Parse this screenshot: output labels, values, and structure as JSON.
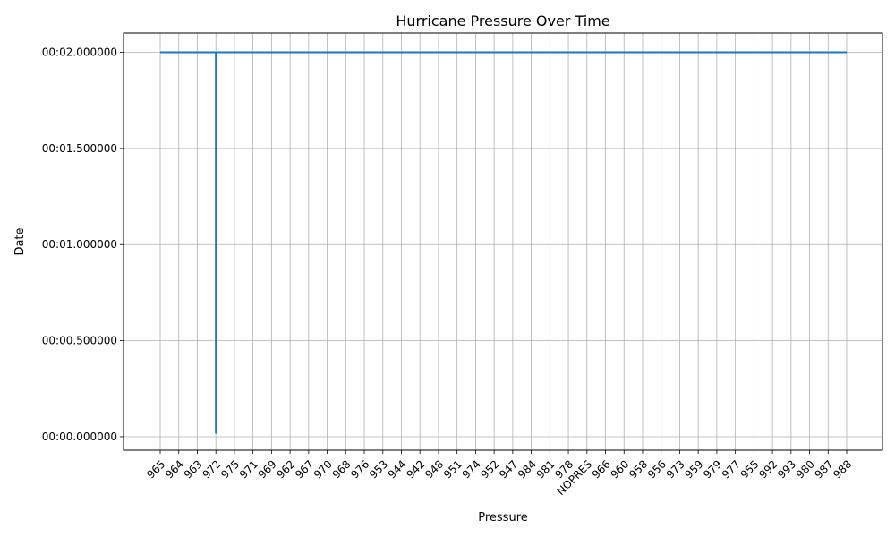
{
  "chart_data": {
    "type": "line",
    "title": "Hurricane Pressure Over Time",
    "xlabel": "Pressure",
    "ylabel": "Date",
    "categories": [
      "965",
      "964",
      "963",
      "972",
      "975",
      "971",
      "969",
      "962",
      "967",
      "970",
      "968",
      "976",
      "953",
      "944",
      "942",
      "948",
      "951",
      "974",
      "952",
      "947",
      "984",
      "981",
      "978",
      "NOPRES",
      "966",
      "960",
      "958",
      "956",
      "973",
      "959",
      "979",
      "977",
      "955",
      "992",
      "993",
      "980",
      "987",
      "988"
    ],
    "y_ticks": [
      "00:00.000000",
      "00:00.500000",
      "00:01.000000",
      "00:01.500000",
      "00:02.000000"
    ],
    "y_tick_values": [
      0.0,
      0.5,
      1.0,
      1.5,
      2.0
    ],
    "ylim": [
      -0.07,
      2.1
    ],
    "grid": true,
    "series": [
      {
        "color": "#1f77b4",
        "points": [
          {
            "x": "965",
            "y": 2.0
          },
          {
            "x": "964",
            "y": 2.0
          },
          {
            "x": "963",
            "y": 2.0
          },
          {
            "x": "972",
            "y": 2.0
          },
          {
            "x": "972",
            "y": 0.02
          },
          {
            "x": "972",
            "y": 2.0
          },
          {
            "x": "975",
            "y": 2.0
          },
          {
            "x": "971",
            "y": 2.0
          },
          {
            "x": "969",
            "y": 2.0
          },
          {
            "x": "962",
            "y": 2.0
          },
          {
            "x": "967",
            "y": 2.0
          },
          {
            "x": "970",
            "y": 2.0
          },
          {
            "x": "968",
            "y": 2.0
          },
          {
            "x": "976",
            "y": 2.0
          },
          {
            "x": "953",
            "y": 2.0
          },
          {
            "x": "944",
            "y": 2.0
          },
          {
            "x": "942",
            "y": 2.0
          },
          {
            "x": "948",
            "y": 2.0
          },
          {
            "x": "951",
            "y": 2.0
          },
          {
            "x": "974",
            "y": 2.0
          },
          {
            "x": "952",
            "y": 2.0
          },
          {
            "x": "947",
            "y": 2.0
          },
          {
            "x": "984",
            "y": 2.0
          },
          {
            "x": "981",
            "y": 2.0
          },
          {
            "x": "978",
            "y": 2.0
          },
          {
            "x": "NOPRES",
            "y": 2.0
          },
          {
            "x": "966",
            "y": 2.0
          },
          {
            "x": "960",
            "y": 2.0
          },
          {
            "x": "958",
            "y": 2.0
          },
          {
            "x": "956",
            "y": 2.0
          },
          {
            "x": "973",
            "y": 2.0
          },
          {
            "x": "959",
            "y": 2.0
          },
          {
            "x": "979",
            "y": 2.0
          },
          {
            "x": "977",
            "y": 2.0
          },
          {
            "x": "955",
            "y": 2.0
          },
          {
            "x": "992",
            "y": 2.0
          },
          {
            "x": "993",
            "y": 2.0
          },
          {
            "x": "980",
            "y": 2.0
          },
          {
            "x": "987",
            "y": 2.0
          },
          {
            "x": "988",
            "y": 2.0
          }
        ]
      }
    ]
  }
}
